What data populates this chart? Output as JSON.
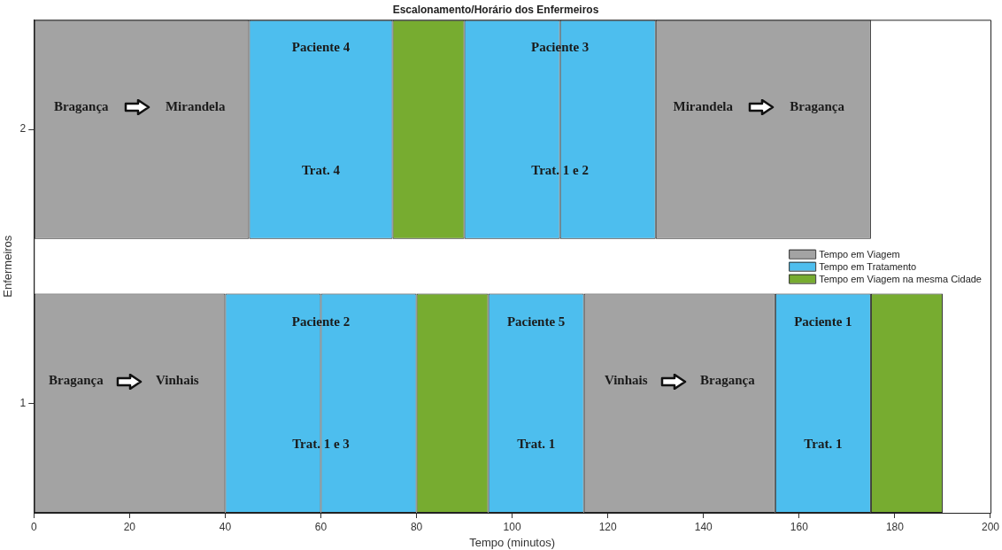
{
  "chart_data": {
    "type": "bar",
    "orientation": "horizontal",
    "title": "Escalonamento/Horário dos Enfermeiros",
    "xlabel": "Tempo (minutos)",
    "ylabel": "Enfermeiros",
    "categories": [
      "2",
      "1"
    ],
    "series": [
      {
        "name": "Tempo em Viagem",
        "color": "#a3a3a3",
        "base": [
          0,
          0
        ],
        "values": [
          45,
          40
        ]
      },
      {
        "name": "Tempo em Tratamento",
        "color": "#4dbeee",
        "base": [
          45,
          40
        ],
        "values": [
          30,
          20
        ]
      },
      {
        "name": "Tempo em Viagem na mesma Cidade",
        "color": "#77ac30",
        "base": [
          75,
          80
        ],
        "values": [
          15,
          15
        ]
      },
      {
        "color": "#4dbeee",
        "base": [
          90,
          60
        ],
        "values": [
          20,
          20
        ]
      },
      {
        "color": "#4dbeee",
        "base": [
          110,
          95
        ],
        "values": [
          20,
          20
        ]
      },
      {
        "color": "#a3a3a3",
        "base": [
          130,
          115
        ],
        "values": [
          45,
          40
        ]
      },
      {
        "color": "#4dbeee",
        "base": [
          null,
          155
        ],
        "values": [
          null,
          20
        ]
      },
      {
        "color": "#77ac30",
        "base": [
          null,
          175
        ],
        "values": [
          null,
          15
        ]
      }
    ],
    "xlim": [
      0,
      200
    ],
    "xticks": [
      0,
      20,
      40,
      60,
      80,
      100,
      120,
      140,
      160,
      180,
      200
    ],
    "grid": false,
    "legend": "right",
    "annotations": [
      "Bragança",
      "Mirandela",
      "Paciente 4",
      "Trat. 4",
      "Paciente 3",
      "Trat. 1 e 2",
      "Mirandela",
      "Bragança",
      "Bragança",
      "Vinhais",
      "Paciente 2",
      "Trat. 1 e 3",
      "Paciente 5",
      "Trat. 1",
      "Vinhais",
      "Bragança",
      "Paciente 1",
      "Trat. 1"
    ]
  }
}
